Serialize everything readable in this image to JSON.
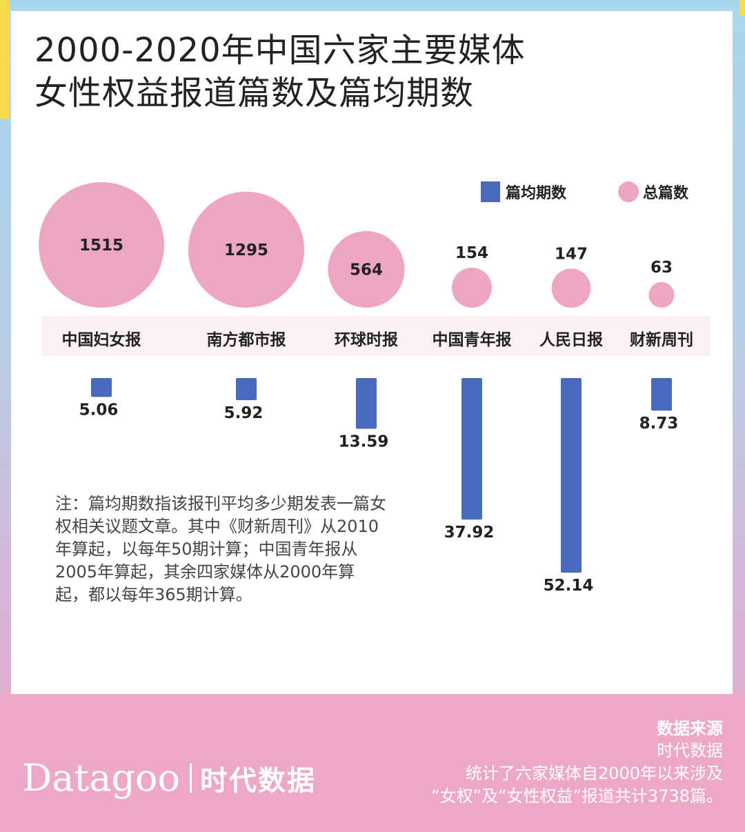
{
  "title_lines": [
    "2000-2020年中国六家主要媒体",
    "女性权益报道篇数及篇均期数"
  ],
  "legend": {
    "bar_label": "篇均期数",
    "circle_label": "总篇数"
  },
  "note": "注：篇均期数指该报刊平均多少期发表一篇女权相关议题文章。其中《财新周刊》从2010年算起，以每年50期计算；中国青年报从2005年算起，其余四家媒体从2000年算起，都以每年365期计算。",
  "logo": {
    "en": "Datagoo",
    "cn": "时代数据"
  },
  "source": {
    "title": "数据来源",
    "name": "时代数据",
    "desc_lines": [
      "统计了六家媒体自2000年以来涉及",
      "“女权”及“女性权益”报道共计3738篇。"
    ]
  },
  "colors": {
    "circle": "#eea5c3",
    "bar": "#4a6bbd",
    "footer": "#eca8c6"
  },
  "chart_data": {
    "type": "bar",
    "categories": [
      "中国妇女报",
      "南方都市报",
      "环球时报",
      "中国青年报",
      "人民日报",
      "财新周刊"
    ],
    "series": [
      {
        "name": "总篇数",
        "mark": "circle",
        "values": [
          1515,
          1295,
          564,
          154,
          147,
          63
        ]
      },
      {
        "name": "篇均期数",
        "mark": "bar",
        "values": [
          5.06,
          5.92,
          13.59,
          37.92,
          52.14,
          8.73
        ]
      }
    ],
    "legend_position": "top-right",
    "grid": false
  }
}
